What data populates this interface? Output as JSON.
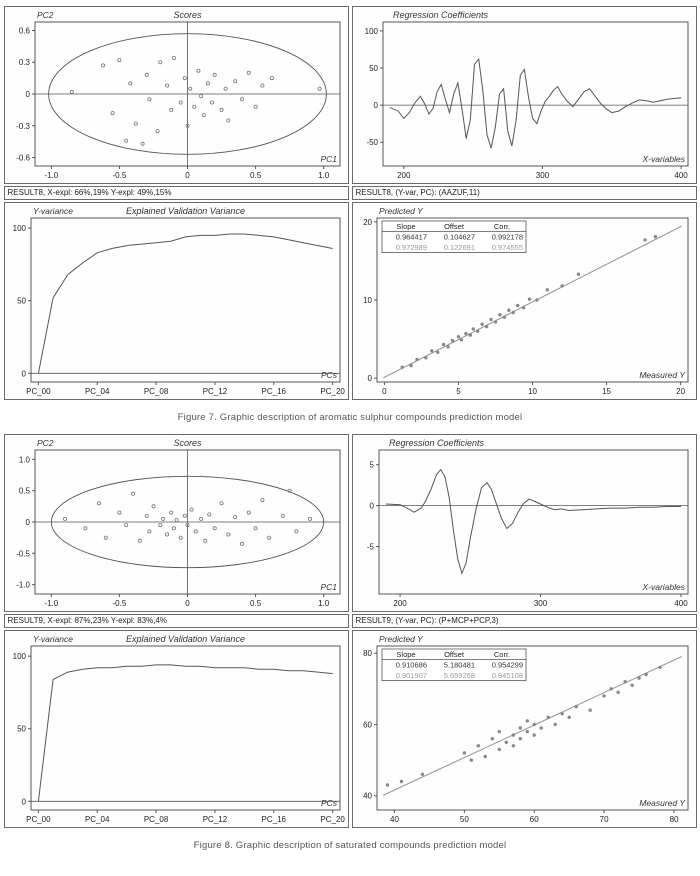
{
  "style": {
    "frame_color": "#555555",
    "line_color": "#555555",
    "point_color": "#888888",
    "fit_color": "#999999",
    "muted_row_color": "#999999",
    "text_color": "#222222"
  },
  "figure7": {
    "scores_status": "RESULT8, X-expl: 66%,19% Y-expl: 49%,15%",
    "regcoef_status": "RESULT8, (Y-var, PC): (AAZUF,11)",
    "caption": "Figure 7. Graphic description of aromatic sulphur compounds prediction model"
  },
  "figure8": {
    "scores_status": "RESULT9, X-expl: 87%,23% Y-expl: 83%,4%",
    "regcoef_status": "RESULT9, (Y-var, PC): (P+MCP+PCP,3)",
    "caption": "Figure 8. Graphic description of saturated compounds prediction model"
  },
  "chart_data": [
    {
      "id": "fig7_scores",
      "type": "scatter",
      "title": "Scores",
      "title_align": "center",
      "corner_label": "PC2",
      "xlabel": "PC1",
      "ml": 30,
      "xlim": [
        -1.12,
        1.12
      ],
      "ylim": [
        -0.68,
        0.68
      ],
      "xticks": [
        -1,
        -0.5,
        0,
        0.5,
        1
      ],
      "xtick_labels": [
        "-1.0",
        "-0.5",
        "0",
        "0.5",
        "1.0"
      ],
      "yticks": [
        -0.6,
        -0.3,
        0,
        0.3,
        0.6
      ],
      "ytick_labels": [
        "-0.6",
        "-0.3",
        "0",
        "0.3",
        "0.6"
      ],
      "crosshair": true,
      "ellipse": {
        "cx": 0,
        "cy": 0,
        "rx": 1.02,
        "ry": 0.57
      },
      "point_style": "open",
      "points": [
        [
          -0.85,
          0.02
        ],
        [
          -0.62,
          0.27
        ],
        [
          -0.55,
          -0.18
        ],
        [
          -0.5,
          0.32
        ],
        [
          -0.45,
          -0.44
        ],
        [
          -0.42,
          0.1
        ],
        [
          -0.38,
          -0.28
        ],
        [
          -0.33,
          -0.47
        ],
        [
          -0.3,
          0.18
        ],
        [
          -0.28,
          -0.05
        ],
        [
          -0.22,
          -0.35
        ],
        [
          -0.2,
          0.3
        ],
        [
          -0.15,
          0.08
        ],
        [
          -0.12,
          -0.15
        ],
        [
          -0.1,
          0.34
        ],
        [
          -0.05,
          -0.08
        ],
        [
          -0.02,
          0.15
        ],
        [
          0.0,
          -0.3
        ],
        [
          0.02,
          0.05
        ],
        [
          0.05,
          -0.12
        ],
        [
          0.08,
          0.22
        ],
        [
          0.1,
          -0.02
        ],
        [
          0.12,
          -0.2
        ],
        [
          0.15,
          0.1
        ],
        [
          0.18,
          -0.08
        ],
        [
          0.2,
          0.18
        ],
        [
          0.25,
          -0.15
        ],
        [
          0.28,
          0.05
        ],
        [
          0.3,
          -0.25
        ],
        [
          0.35,
          0.12
        ],
        [
          0.4,
          -0.05
        ],
        [
          0.45,
          0.2
        ],
        [
          0.5,
          -0.12
        ],
        [
          0.55,
          0.08
        ],
        [
          0.62,
          0.15
        ],
        [
          0.97,
          0.05
        ]
      ]
    },
    {
      "id": "fig7_regcoef",
      "type": "line",
      "title": "Regression Coefficients",
      "title_align": "left",
      "xlabel": "X-variables",
      "ml": 30,
      "xlim": [
        185,
        405
      ],
      "ylim": [
        -82,
        112
      ],
      "xticks": [
        200,
        300,
        400
      ],
      "xtick_labels": [
        "200",
        "300",
        "400"
      ],
      "yticks": [
        -50,
        0,
        50,
        100
      ],
      "ytick_labels": [
        "-50",
        "0",
        "50",
        "100"
      ],
      "zeroline": true,
      "line": [
        [
          190,
          -3
        ],
        [
          196,
          -8
        ],
        [
          200,
          -18
        ],
        [
          204,
          -10
        ],
        [
          208,
          3
        ],
        [
          212,
          12
        ],
        [
          215,
          2
        ],
        [
          218,
          -12
        ],
        [
          221,
          -5
        ],
        [
          224,
          18
        ],
        [
          227,
          28
        ],
        [
          230,
          8
        ],
        [
          233,
          -10
        ],
        [
          236,
          15
        ],
        [
          239,
          30
        ],
        [
          242,
          -5
        ],
        [
          245,
          -45
        ],
        [
          248,
          -20
        ],
        [
          251,
          55
        ],
        [
          254,
          62
        ],
        [
          257,
          20
        ],
        [
          260,
          -40
        ],
        [
          263,
          -58
        ],
        [
          266,
          -30
        ],
        [
          269,
          15
        ],
        [
          272,
          22
        ],
        [
          275,
          -35
        ],
        [
          278,
          -55
        ],
        [
          281,
          -20
        ],
        [
          284,
          40
        ],
        [
          287,
          48
        ],
        [
          290,
          10
        ],
        [
          293,
          -18
        ],
        [
          296,
          -25
        ],
        [
          299,
          -8
        ],
        [
          302,
          5
        ],
        [
          305,
          12
        ],
        [
          308,
          20
        ],
        [
          311,
          25
        ],
        [
          314,
          15
        ],
        [
          318,
          5
        ],
        [
          322,
          -2
        ],
        [
          326,
          8
        ],
        [
          330,
          18
        ],
        [
          334,
          22
        ],
        [
          338,
          12
        ],
        [
          342,
          2
        ],
        [
          346,
          -5
        ],
        [
          350,
          -10
        ],
        [
          355,
          -8
        ],
        [
          360,
          -2
        ],
        [
          365,
          3
        ],
        [
          370,
          7
        ],
        [
          375,
          6
        ],
        [
          380,
          4
        ],
        [
          385,
          6
        ],
        [
          390,
          8
        ],
        [
          395,
          9
        ],
        [
          400,
          10
        ]
      ]
    },
    {
      "id": "fig7_variance",
      "type": "line",
      "title": "Explained Validation Variance",
      "title_align": "center",
      "corner_label": "Y-variance",
      "xlabel": "PCs",
      "ml": 26,
      "xlim": [
        -0.5,
        20.5
      ],
      "ylim": [
        -6,
        107
      ],
      "xticks": [
        0,
        4,
        8,
        12,
        16,
        20
      ],
      "xtick_labels": [
        "PC_00",
        "PC_04",
        "PC_08",
        "PC_12",
        "PC_16",
        "PC_20"
      ],
      "yticks": [
        0,
        50,
        100
      ],
      "ytick_labels": [
        "0",
        "50",
        "100"
      ],
      "zeroline": true,
      "values": [
        0,
        52,
        68,
        76,
        83,
        86,
        88,
        89,
        90,
        91,
        94,
        95,
        95,
        96,
        96,
        95,
        94,
        92,
        90,
        88,
        86
      ]
    },
    {
      "id": "fig7_predicted",
      "type": "scatter",
      "corner_label": "Predicted Y",
      "xlabel": "Measured Y",
      "ml": 24,
      "xlim": [
        -0.5,
        20.5
      ],
      "ylim": [
        -0.5,
        20.5
      ],
      "xticks": [
        0,
        5,
        10,
        15,
        20
      ],
      "xtick_labels": [
        "0",
        "5",
        "10",
        "15",
        "20"
      ],
      "yticks": [
        0,
        10,
        20
      ],
      "ytick_labels": [
        "0",
        "10",
        "20"
      ],
      "point_style": "filled",
      "fit": {
        "slope": 0.964417,
        "offset": 0.104627
      },
      "table": {
        "headers": [
          "Slope",
          "Offset",
          "Corr."
        ],
        "rows": [
          [
            "0.964417",
            "0.104627",
            "0.992178"
          ],
          [
            "0.972989",
            "0.122691",
            "0.974555"
          ]
        ]
      },
      "points": [
        [
          1.2,
          1.4
        ],
        [
          1.8,
          1.6
        ],
        [
          2.2,
          2.4
        ],
        [
          2.8,
          2.6
        ],
        [
          3.2,
          3.5
        ],
        [
          3.6,
          3.3
        ],
        [
          4.0,
          4.3
        ],
        [
          4.3,
          4.0
        ],
        [
          4.6,
          4.8
        ],
        [
          5.0,
          5.3
        ],
        [
          5.2,
          4.9
        ],
        [
          5.5,
          5.7
        ],
        [
          5.8,
          5.5
        ],
        [
          6.0,
          6.3
        ],
        [
          6.3,
          6.0
        ],
        [
          6.6,
          6.9
        ],
        [
          6.9,
          6.6
        ],
        [
          7.2,
          7.5
        ],
        [
          7.5,
          7.2
        ],
        [
          7.8,
          8.1
        ],
        [
          8.1,
          7.8
        ],
        [
          8.4,
          8.7
        ],
        [
          8.7,
          8.4
        ],
        [
          9.0,
          9.3
        ],
        [
          9.4,
          9.0
        ],
        [
          9.8,
          10.1
        ],
        [
          10.3,
          10.0
        ],
        [
          11.0,
          11.3
        ],
        [
          12.0,
          11.8
        ],
        [
          13.1,
          13.3
        ],
        [
          17.6,
          17.7
        ],
        [
          18.3,
          18.1
        ]
      ]
    },
    {
      "id": "fig8_scores",
      "type": "scatter",
      "title": "Scores",
      "title_align": "center",
      "corner_label": "PC2",
      "xlabel": "PC1",
      "ml": 30,
      "xlim": [
        -1.12,
        1.12
      ],
      "ylim": [
        -1.15,
        1.15
      ],
      "xticks": [
        -1,
        -0.5,
        0,
        0.5,
        1
      ],
      "xtick_labels": [
        "-1.0",
        "-0.5",
        "0",
        "0.5",
        "1.0"
      ],
      "yticks": [
        -1,
        -0.5,
        0,
        0.5,
        1
      ],
      "ytick_labels": [
        "-1.0",
        "-0.5",
        "0",
        "0.5",
        "1.0"
      ],
      "crosshair": true,
      "ellipse": {
        "cx": 0,
        "cy": 0,
        "rx": 1.0,
        "ry": 0.73
      },
      "point_style": "open",
      "points": [
        [
          -0.9,
          0.05
        ],
        [
          -0.75,
          -0.1
        ],
        [
          -0.65,
          0.3
        ],
        [
          -0.6,
          -0.25
        ],
        [
          -0.5,
          0.15
        ],
        [
          -0.45,
          -0.05
        ],
        [
          -0.4,
          0.45
        ],
        [
          -0.35,
          -0.3
        ],
        [
          -0.3,
          0.1
        ],
        [
          -0.28,
          -0.15
        ],
        [
          -0.25,
          0.25
        ],
        [
          -0.2,
          -0.05
        ],
        [
          -0.18,
          0.05
        ],
        [
          -0.15,
          -0.2
        ],
        [
          -0.12,
          0.15
        ],
        [
          -0.1,
          -0.1
        ],
        [
          -0.08,
          0.03
        ],
        [
          -0.05,
          -0.25
        ],
        [
          -0.02,
          0.1
        ],
        [
          0.0,
          -0.05
        ],
        [
          0.03,
          0.2
        ],
        [
          0.06,
          -0.15
        ],
        [
          0.1,
          0.05
        ],
        [
          0.13,
          -0.3
        ],
        [
          0.16,
          0.12
        ],
        [
          0.2,
          -0.1
        ],
        [
          0.25,
          0.3
        ],
        [
          0.3,
          -0.2
        ],
        [
          0.35,
          0.08
        ],
        [
          0.4,
          -0.35
        ],
        [
          0.45,
          0.15
        ],
        [
          0.5,
          -0.1
        ],
        [
          0.55,
          0.35
        ],
        [
          0.6,
          -0.25
        ],
        [
          0.7,
          0.1
        ],
        [
          0.75,
          0.5
        ],
        [
          0.8,
          -0.15
        ],
        [
          0.9,
          0.05
        ]
      ]
    },
    {
      "id": "fig8_regcoef",
      "type": "line",
      "title": "Regression Coefficients",
      "title_align": "left",
      "xlabel": "X-variables",
      "ml": 26,
      "xlim": [
        185,
        405
      ],
      "ylim": [
        -10.8,
        6.8
      ],
      "xticks": [
        200,
        300,
        400
      ],
      "xtick_labels": [
        "200",
        "300",
        "400"
      ],
      "yticks": [
        -5,
        0,
        5
      ],
      "ytick_labels": [
        "-5",
        "0",
        "5"
      ],
      "zeroline": true,
      "line": [
        [
          190,
          0.2
        ],
        [
          200,
          0.1
        ],
        [
          205,
          -0.3
        ],
        [
          210,
          -0.8
        ],
        [
          215,
          -0.3
        ],
        [
          218,
          0.5
        ],
        [
          222,
          2.0
        ],
        [
          226,
          3.8
        ],
        [
          229,
          4.4
        ],
        [
          232,
          3.5
        ],
        [
          235,
          1.0
        ],
        [
          238,
          -3.0
        ],
        [
          241,
          -6.5
        ],
        [
          244,
          -8.3
        ],
        [
          247,
          -7.0
        ],
        [
          250,
          -4.0
        ],
        [
          254,
          -0.5
        ],
        [
          258,
          2.2
        ],
        [
          262,
          2.8
        ],
        [
          265,
          2.0
        ],
        [
          268,
          0.5
        ],
        [
          272,
          -1.5
        ],
        [
          276,
          -2.8
        ],
        [
          280,
          -2.2
        ],
        [
          284,
          -0.8
        ],
        [
          288,
          0.3
        ],
        [
          292,
          0.8
        ],
        [
          296,
          0.5
        ],
        [
          300,
          0.2
        ],
        [
          305,
          -0.2
        ],
        [
          310,
          -0.5
        ],
        [
          315,
          -0.4
        ],
        [
          320,
          -0.6
        ],
        [
          330,
          -0.5
        ],
        [
          340,
          -0.4
        ],
        [
          350,
          -0.3
        ],
        [
          360,
          -0.3
        ],
        [
          370,
          -0.2
        ],
        [
          380,
          -0.2
        ],
        [
          390,
          -0.1
        ],
        [
          400,
          -0.1
        ]
      ]
    },
    {
      "id": "fig8_variance",
      "type": "line",
      "title": "Explained Validation Variance",
      "title_align": "center",
      "corner_label": "Y-variance",
      "xlabel": "PCs",
      "ml": 26,
      "xlim": [
        -0.5,
        20.5
      ],
      "ylim": [
        -6,
        107
      ],
      "xticks": [
        0,
        4,
        8,
        12,
        16,
        20
      ],
      "xtick_labels": [
        "PC_00",
        "PC_04",
        "PC_08",
        "PC_12",
        "PC_16",
        "PC_20"
      ],
      "yticks": [
        0,
        50,
        100
      ],
      "ytick_labels": [
        "0",
        "50",
        "100"
      ],
      "zeroline": true,
      "values": [
        0,
        84,
        89,
        91,
        92,
        92,
        93,
        93,
        94,
        94,
        93,
        93,
        92,
        92,
        92,
        91,
        91,
        90,
        90,
        89,
        88
      ]
    },
    {
      "id": "fig8_predicted",
      "type": "scatter",
      "corner_label": "Predicted Y",
      "xlabel": "Measured Y",
      "ml": 24,
      "xlim": [
        37.5,
        82
      ],
      "ylim": [
        36,
        82
      ],
      "xticks": [
        40,
        50,
        60,
        70,
        80
      ],
      "xtick_labels": [
        "40",
        "50",
        "60",
        "70",
        "80"
      ],
      "yticks": [
        40,
        60,
        80
      ],
      "ytick_labels": [
        "40",
        "60",
        "80"
      ],
      "point_style": "filled",
      "fit": {
        "slope": 0.910686,
        "offset": 5.180481
      },
      "table": {
        "headers": [
          "Slope",
          "Offset",
          "Corr."
        ],
        "rows": [
          [
            "0.910686",
            "5.180481",
            "0.954299"
          ],
          [
            "0.901907",
            "5.659268",
            "0.945108"
          ]
        ]
      },
      "points": [
        [
          39,
          43
        ],
        [
          41,
          44
        ],
        [
          44,
          46
        ],
        [
          50,
          52
        ],
        [
          51,
          50
        ],
        [
          52,
          54
        ],
        [
          53,
          51
        ],
        [
          54,
          56
        ],
        [
          55,
          53
        ],
        [
          55,
          58
        ],
        [
          56,
          55
        ],
        [
          57,
          57
        ],
        [
          57,
          54
        ],
        [
          58,
          59
        ],
        [
          58,
          56
        ],
        [
          59,
          58
        ],
        [
          59,
          61
        ],
        [
          60,
          57
        ],
        [
          60,
          60
        ],
        [
          61,
          59
        ],
        [
          62,
          62
        ],
        [
          63,
          60
        ],
        [
          64,
          63
        ],
        [
          65,
          62
        ],
        [
          66,
          65
        ],
        [
          68,
          64
        ],
        [
          70,
          68
        ],
        [
          71,
          70
        ],
        [
          72,
          69
        ],
        [
          73,
          72
        ],
        [
          74,
          71
        ],
        [
          75,
          73
        ],
        [
          76,
          74
        ],
        [
          78,
          76
        ]
      ]
    }
  ]
}
